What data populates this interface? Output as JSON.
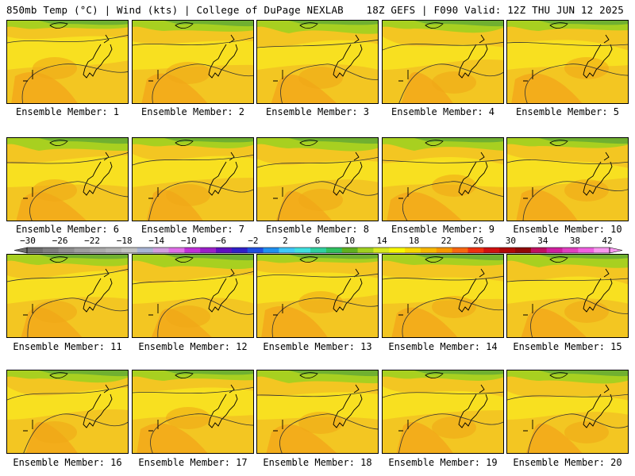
{
  "header": {
    "left": "850mb Temp (°C) | Wind (kts) | College of DuPage NEXLAB",
    "right": "18Z GEFS | F090 Valid: 12Z THU JUN 12 2025"
  },
  "panels": [
    {
      "label": "Ensemble Member: 1"
    },
    {
      "label": "Ensemble Member: 2"
    },
    {
      "label": "Ensemble Member: 3"
    },
    {
      "label": "Ensemble Member: 4"
    },
    {
      "label": "Ensemble Member: 5"
    },
    {
      "label": "Ensemble Member: 6"
    },
    {
      "label": "Ensemble Member: 7"
    },
    {
      "label": "Ensemble Member: 8"
    },
    {
      "label": "Ensemble Member: 9"
    },
    {
      "label": "Ensemble Member: 10"
    },
    {
      "label": "Ensemble Member: 11"
    },
    {
      "label": "Ensemble Member: 12"
    },
    {
      "label": "Ensemble Member: 13"
    },
    {
      "label": "Ensemble Member: 14"
    },
    {
      "label": "Ensemble Member: 15"
    },
    {
      "label": "Ensemble Member: 16"
    },
    {
      "label": "Ensemble Member: 17"
    },
    {
      "label": "Ensemble Member: 18"
    },
    {
      "label": "Ensemble Member: 19"
    },
    {
      "label": "Ensemble Member: 20"
    }
  ],
  "colorbar": {
    "ticks": [
      "−30",
      "−26",
      "−22",
      "−18",
      "−14",
      "−10",
      "−6",
      "−2",
      "2",
      "6",
      "10",
      "14",
      "18",
      "22",
      "26",
      "30",
      "34",
      "38",
      "42"
    ],
    "colors": [
      "#6e6e6e",
      "#7e7e7e",
      "#8e8e8e",
      "#9e9e9e",
      "#aaaaaa",
      "#b4b4b4",
      "#c2c2c2",
      "#a8b4d4",
      "#d2a0e0",
      "#e070e8",
      "#c030d8",
      "#9a20c8",
      "#6010c0",
      "#3020c8",
      "#2050e0",
      "#2090f0",
      "#40c8f8",
      "#40e0e0",
      "#30d0a0",
      "#30c060",
      "#60b020",
      "#a0d020",
      "#d8e820",
      "#f8f800",
      "#f8d800",
      "#f8b800",
      "#f89800",
      "#f86810",
      "#f03010",
      "#d01010",
      "#b00808",
      "#900808",
      "#c01060",
      "#d020a0",
      "#e040c0",
      "#f060e0",
      "#f898f0"
    ]
  }
}
